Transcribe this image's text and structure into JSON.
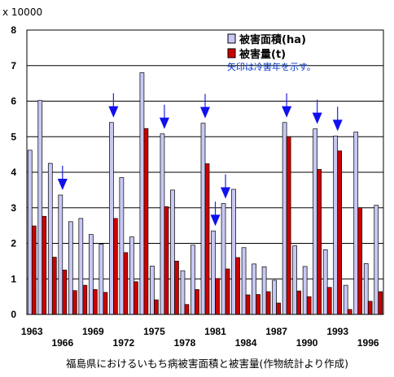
{
  "chart_data": {
    "type": "bar",
    "unit_label": "x 10000",
    "ylim": [
      0,
      8
    ],
    "yticks": [
      0,
      1,
      2,
      3,
      4,
      5,
      6,
      7,
      8
    ],
    "grid": true,
    "legend_position": "top-right",
    "years": [
      1963,
      1964,
      1965,
      1966,
      1967,
      1968,
      1969,
      1970,
      1971,
      1972,
      1973,
      1974,
      1975,
      1976,
      1977,
      1978,
      1979,
      1980,
      1981,
      1982,
      1983,
      1984,
      1985,
      1986,
      1987,
      1988,
      1989,
      1990,
      1991,
      1992,
      1993,
      1994,
      1995,
      1996,
      1997
    ],
    "x_tick_labels": [
      "1963",
      "1966",
      "1969",
      "1972",
      "1975",
      "1978",
      "1981",
      "1984",
      "1987",
      "1990",
      "1993",
      "1996"
    ],
    "series": [
      {
        "name": "被害面積(ha)",
        "color": "#c8c8f5",
        "values": [
          4.62,
          6.02,
          4.25,
          3.36,
          2.61,
          2.7,
          2.25,
          1.98,
          5.4,
          3.85,
          2.18,
          6.8,
          1.36,
          5.08,
          3.5,
          1.23,
          1.95,
          5.38,
          2.35,
          3.12,
          3.52,
          1.88,
          1.42,
          1.34,
          0.96,
          5.4,
          1.93,
          1.35,
          5.22,
          1.82,
          5.02,
          0.82,
          5.13,
          1.43,
          3.07
        ]
      },
      {
        "name": "被害量(t)",
        "color": "#cc0000",
        "values": [
          2.49,
          2.76,
          1.61,
          1.25,
          0.67,
          0.82,
          0.7,
          0.62,
          2.7,
          1.74,
          0.92,
          5.23,
          0.41,
          3.03,
          1.5,
          0.28,
          0.7,
          4.24,
          1.01,
          1.28,
          1.6,
          0.55,
          0.56,
          0.64,
          0.32,
          5.0,
          0.66,
          0.5,
          4.08,
          0.76,
          4.6,
          0.14,
          3.0,
          0.37,
          0.64
        ]
      }
    ],
    "cold_summer_years": [
      1966,
      1971,
      1976,
      1980,
      1981,
      1982,
      1988,
      1991,
      1993
    ],
    "annotation": "矢印は冷害年を示す。",
    "caption": "福島県におけるいもち病被害面積と被害量(作物統計より作成)"
  }
}
